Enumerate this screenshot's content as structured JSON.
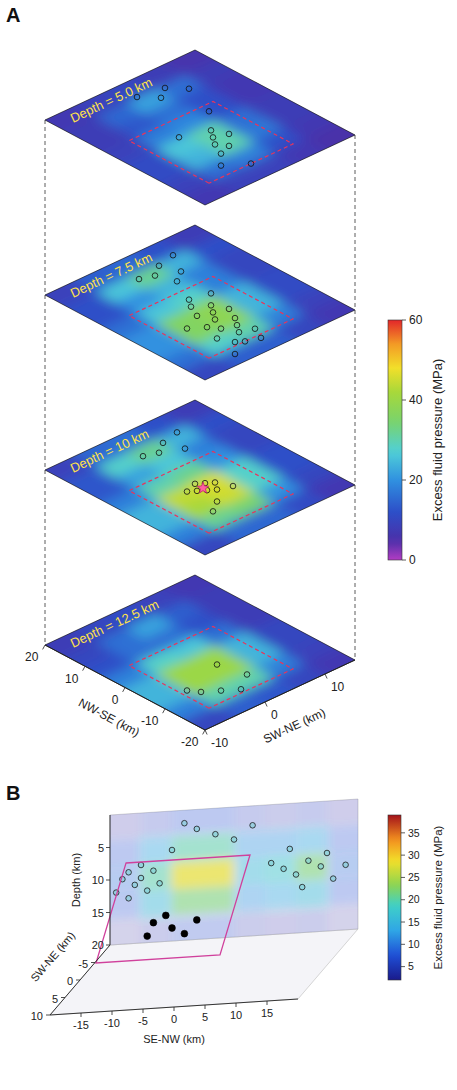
{
  "chart_data": [
    {
      "type": "heatmap_slices",
      "panel": "A",
      "x_label": "NW-SE (km)",
      "y_label": "SW-NE (km)",
      "xlim": [
        -20,
        20
      ],
      "xticks": [
        -20,
        -10,
        0,
        10,
        20
      ],
      "ylim": [
        -10,
        15
      ],
      "yticks": [
        -10,
        0,
        10
      ],
      "x_edges": [
        -20,
        -15,
        -10,
        -5,
        0,
        5,
        10,
        15,
        20
      ],
      "y_edges": [
        -10,
        -5,
        0,
        5,
        10,
        15
      ],
      "fault_box": {
        "x": [
          -15,
          5
        ],
        "y": [
          -6,
          8
        ]
      },
      "colorbar": {
        "label": "Excess fluid pressure (MPa)",
        "range": [
          0,
          60
        ],
        "ticks": [
          0,
          20,
          40,
          60
        ]
      },
      "slices": [
        {
          "label": "Depth = 5.0 km",
          "cells": [
            [
              7,
              9,
              11,
              11,
              9,
              8,
              8,
              7
            ],
            [
              9,
              16,
              24,
              26,
              18,
              13,
              15,
              9
            ],
            [
              9,
              18,
              30,
              30,
              19,
              16,
              22,
              10
            ],
            [
              7,
              12,
              17,
              16,
              12,
              12,
              16,
              8
            ],
            [
              5,
              7,
              8,
              8,
              7,
              7,
              8,
              6
            ]
          ],
          "events": [
            [
              14,
              6
            ],
            [
              12,
              4
            ],
            [
              15,
              2
            ],
            [
              11,
              8
            ],
            [
              -2,
              3
            ],
            [
              -4,
              2
            ],
            [
              -6,
              1
            ],
            [
              -5,
              4
            ],
            [
              -8,
              2
            ],
            [
              -9,
              0
            ],
            [
              0,
              -1
            ],
            [
              -12,
              -2
            ],
            [
              3,
              6
            ],
            [
              -15,
              1
            ]
          ]
        },
        {
          "label": "Depth = 7.5 km",
          "cells": [
            [
              10,
              16,
              20,
              20,
              16,
              12,
              12,
              9
            ],
            [
              14,
              28,
              36,
              36,
              26,
              20,
              26,
              14
            ],
            [
              14,
              30,
              38,
              38,
              28,
              24,
              32,
              15
            ],
            [
              10,
              18,
              24,
              24,
              18,
              18,
              24,
              12
            ],
            [
              7,
              9,
              11,
              11,
              10,
              10,
              12,
              8
            ]
          ],
          "events": [
            [
              14,
              5
            ],
            [
              12,
              3
            ],
            [
              10,
              6
            ],
            [
              15,
              8
            ],
            [
              13,
              1
            ],
            [
              8,
              4
            ],
            [
              2,
              2
            ],
            [
              0,
              1
            ],
            [
              -2,
              3
            ],
            [
              -3,
              0
            ],
            [
              -4,
              2
            ],
            [
              -5,
              4
            ],
            [
              -6,
              1
            ],
            [
              -7,
              -1
            ],
            [
              -8,
              3
            ],
            [
              -9,
              0
            ],
            [
              -10,
              2
            ],
            [
              -11,
              -2
            ],
            [
              -12,
              1
            ],
            [
              -13,
              3
            ],
            [
              -14,
              -1
            ],
            [
              -15,
              0
            ],
            [
              -16,
              2
            ],
            [
              -17,
              -3
            ],
            [
              -5,
              -3
            ],
            [
              1,
              5
            ]
          ]
        },
        {
          "label": "Depth = 10 km",
          "cells": [
            [
              10,
              18,
              24,
              24,
              18,
              13,
              13,
              9
            ],
            [
              15,
              32,
              42,
              44,
              30,
              22,
              28,
              15
            ],
            [
              15,
              34,
              45,
              46,
              32,
              26,
              32,
              16
            ],
            [
              11,
              20,
              28,
              28,
              20,
              18,
              24,
              12
            ],
            [
              7,
              10,
              12,
              12,
              10,
              10,
              12,
              8
            ]
          ],
          "events": [
            [
              13,
              5
            ],
            [
              11,
              3
            ],
            [
              14,
              8
            ],
            [
              9,
              6
            ],
            [
              12,
              1
            ],
            [
              -1,
              1
            ],
            [
              -2,
              2
            ],
            [
              -3,
              0
            ],
            [
              -4,
              1
            ],
            [
              -3,
              3
            ],
            [
              -2,
              -1
            ],
            [
              -5,
              2
            ],
            [
              -8,
              0
            ],
            [
              -10,
              -2
            ],
            [
              -6,
              4
            ]
          ],
          "mainshock": [
            -3,
            1
          ]
        },
        {
          "label": "Depth = 12.5 km",
          "cells": [
            [
              10,
              18,
              24,
              24,
              18,
              12,
              10,
              8
            ],
            [
              14,
              30,
              40,
              40,
              28,
              16,
              16,
              10
            ],
            [
              13,
              30,
              40,
              40,
              26,
              16,
              22,
              11
            ],
            [
              10,
              18,
              24,
              24,
              16,
              12,
              14,
              9
            ],
            [
              7,
              9,
              10,
              10,
              8,
              8,
              8,
              7
            ]
          ],
          "events": [
            [
              -10,
              -4
            ],
            [
              -12,
              -2
            ],
            [
              -8,
              -5
            ],
            [
              -14,
              0
            ],
            [
              -5,
              2
            ],
            [
              -11,
              3
            ]
          ]
        }
      ]
    },
    {
      "type": "isosurface_projection",
      "panel": "B",
      "x_label": "SE-NW (km)",
      "y_label": "Depth (km)",
      "z_label": "SW-NE (km)",
      "xlim": [
        -20,
        20
      ],
      "xticks": [
        -15,
        -10,
        -5,
        0,
        5,
        10,
        15
      ],
      "ylim": [
        0,
        20
      ],
      "yticks": [
        5,
        10,
        15,
        20
      ],
      "zlim": [
        -10,
        10
      ],
      "zticks": [
        -5,
        0,
        5,
        10
      ],
      "x_edges": [
        -20,
        -15,
        -10,
        -5,
        0,
        5,
        10,
        15,
        20
      ],
      "y_edges": [
        0,
        4,
        8,
        12,
        16,
        20
      ],
      "cells": [
        [
          4,
          6,
          8,
          8,
          6,
          5,
          6,
          4
        ],
        [
          8,
          14,
          20,
          20,
          12,
          12,
          14,
          8
        ],
        [
          10,
          20,
          28,
          28,
          16,
          18,
          22,
          10
        ],
        [
          8,
          16,
          22,
          22,
          12,
          14,
          16,
          8
        ],
        [
          3,
          5,
          7,
          7,
          5,
          4,
          5,
          3
        ]
      ],
      "events": [
        [
          -18,
          10
        ],
        [
          -17,
          9
        ],
        [
          -16,
          11
        ],
        [
          -15,
          10
        ],
        [
          -14,
          12
        ],
        [
          -13,
          9
        ],
        [
          -12,
          11
        ],
        [
          -19,
          12
        ],
        [
          -17,
          13
        ],
        [
          -15,
          8
        ],
        [
          -10,
          6
        ],
        [
          -6,
          3
        ],
        [
          -3,
          4
        ],
        [
          0,
          5
        ],
        [
          3,
          3
        ],
        [
          6,
          9
        ],
        [
          8,
          10
        ],
        [
          10,
          11
        ],
        [
          12,
          9
        ],
        [
          14,
          10
        ],
        [
          16,
          12
        ],
        [
          18,
          10
        ],
        [
          11,
          13
        ],
        [
          15,
          8
        ],
        [
          9,
          7
        ],
        [
          -8,
          2
        ]
      ],
      "deep_events": [
        [
          -13,
          17
        ],
        [
          -10,
          18
        ],
        [
          -8,
          19
        ],
        [
          -11,
          16
        ],
        [
          -6,
          17
        ],
        [
          -14,
          19
        ]
      ],
      "fault_plane": {
        "x": [
          -15,
          5
        ],
        "y": [
          5,
          15
        ],
        "z": [
          -5,
          5
        ]
      },
      "colorbar": {
        "label": "Excess fluid pressure (MPa)",
        "range": [
          2,
          39
        ],
        "ticks": [
          5,
          10,
          15,
          20,
          25,
          30,
          35
        ]
      }
    }
  ]
}
